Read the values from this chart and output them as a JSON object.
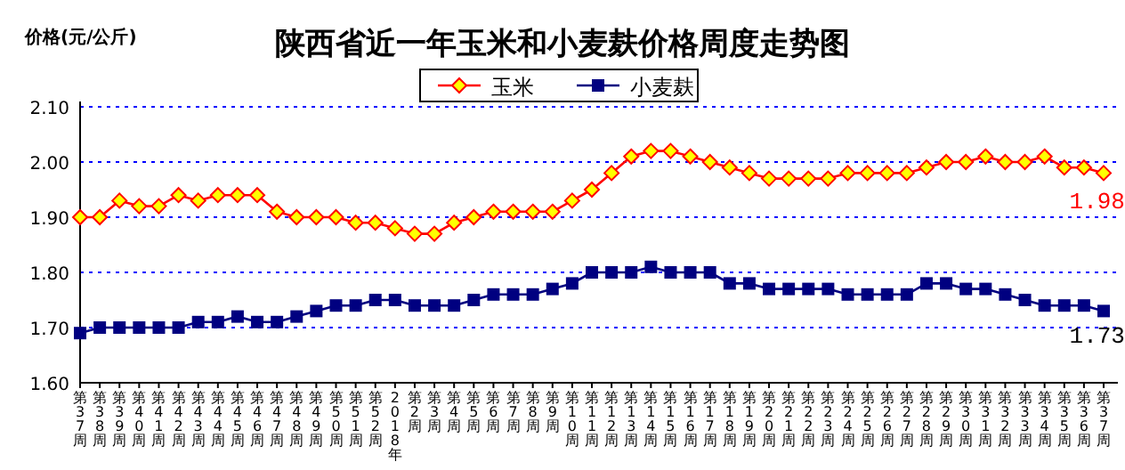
{
  "chart_data": {
    "type": "line",
    "title": "陕西省近一年玉米和小麦麸价格周度走势图",
    "ylabel": "价格(元/公斤)",
    "categories": [
      "第37周",
      "第38周",
      "第39周",
      "第40周",
      "第41周",
      "第42周",
      "第43周",
      "第44周",
      "第45周",
      "第46周",
      "第47周",
      "第48周",
      "第49周",
      "第50周",
      "第51周",
      "第52周",
      "2018年",
      "第2周",
      "第3周",
      "第4周",
      "第5周",
      "第6周",
      "第7周",
      "第8周",
      "第9周",
      "第10周",
      "第11周",
      "第12周",
      "第13周",
      "第14周",
      "第15周",
      "第16周",
      "第17周",
      "第18周",
      "第19周",
      "第20周",
      "第21周",
      "第22周",
      "第23周",
      "第24周",
      "第25周",
      "第26周",
      "第27周",
      "第28周",
      "第29周",
      "第30周",
      "第31周",
      "第32周",
      "第33周",
      "第34周",
      "第35周",
      "第36周",
      "第37周"
    ],
    "series": [
      {
        "name": "玉米",
        "color": "#ff0000",
        "marker": "diamond",
        "values": [
          1.9,
          1.9,
          1.93,
          1.92,
          1.92,
          1.94,
          1.93,
          1.94,
          1.94,
          1.94,
          1.91,
          1.9,
          1.9,
          1.9,
          1.89,
          1.89,
          1.88,
          1.87,
          1.87,
          1.89,
          1.9,
          1.91,
          1.91,
          1.91,
          1.91,
          1.93,
          1.95,
          1.98,
          2.01,
          2.02,
          2.02,
          2.01,
          2.0,
          1.99,
          1.98,
          1.97,
          1.97,
          1.97,
          1.97,
          1.98,
          1.98,
          1.98,
          1.98,
          1.99,
          2.0,
          2.0,
          2.01,
          2.0,
          2.0,
          2.01,
          1.99,
          1.99,
          1.98
        ],
        "value_labels": [
          null,
          null,
          null,
          null,
          null,
          null,
          null,
          null,
          null,
          null,
          null,
          null,
          null,
          null,
          null,
          null,
          null,
          null,
          null,
          null,
          null,
          null,
          null,
          null,
          null,
          null,
          null,
          null,
          null,
          null,
          null,
          null,
          null,
          null,
          null,
          null,
          null,
          null,
          null,
          null,
          null,
          null,
          null,
          null,
          null,
          null,
          null,
          null,
          null,
          null,
          null,
          null,
          "1.98"
        ]
      },
      {
        "name": "小麦麸",
        "color": "#000080",
        "marker": "square",
        "values": [
          1.69,
          1.7,
          1.7,
          1.7,
          1.7,
          1.7,
          1.71,
          1.71,
          1.72,
          1.71,
          1.71,
          1.72,
          1.73,
          1.74,
          1.74,
          1.75,
          1.75,
          1.74,
          1.74,
          1.74,
          1.75,
          1.76,
          1.76,
          1.76,
          1.77,
          1.78,
          1.8,
          1.8,
          1.8,
          1.81,
          1.8,
          1.8,
          1.8,
          1.78,
          1.78,
          1.77,
          1.77,
          1.77,
          1.77,
          1.76,
          1.76,
          1.76,
          1.76,
          1.78,
          1.78,
          1.77,
          1.77,
          1.76,
          1.75,
          1.74,
          1.74,
          1.74,
          1.73
        ],
        "value_labels": [
          null,
          null,
          null,
          null,
          null,
          null,
          null,
          null,
          null,
          null,
          null,
          null,
          null,
          null,
          null,
          null,
          null,
          null,
          null,
          null,
          null,
          null,
          null,
          null,
          null,
          null,
          null,
          null,
          null,
          null,
          null,
          null,
          null,
          null,
          null,
          null,
          null,
          null,
          null,
          null,
          null,
          null,
          null,
          null,
          null,
          null,
          null,
          null,
          null,
          null,
          null,
          null,
          "1.73"
        ]
      }
    ],
    "ylim": [
      1.6,
      2.1
    ],
    "yticks": [
      {
        "value": 1.6,
        "label": "1.60"
      },
      {
        "value": 1.7,
        "label": "1.70"
      },
      {
        "value": 1.8,
        "label": "1.80"
      },
      {
        "value": 1.9,
        "label": "1.90"
      },
      {
        "value": 2.0,
        "label": "2.00"
      },
      {
        "value": 2.1,
        "label": "2.10"
      }
    ],
    "grid": "y",
    "legend": "top"
  }
}
